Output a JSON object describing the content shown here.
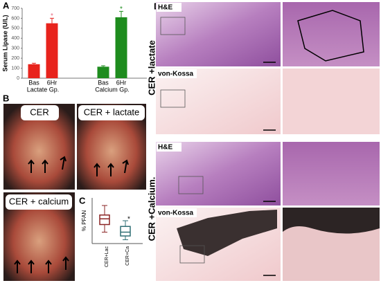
{
  "figure": {
    "panels": [
      "A",
      "B",
      "C",
      "D"
    ],
    "photos": [
      "CER",
      "CER + lactate",
      "CER + calcium"
    ],
    "stains": [
      "H&E",
      "von-Kossa",
      "H&E",
      "von-Kossa"
    ],
    "row_labels": [
      "CER +lactate",
      "CER +Calcium."
    ]
  },
  "chart_data": [
    {
      "type": "bar",
      "ylabel": "Serum Lipase (U/L)",
      "categories": [
        "Bas",
        "6Hr",
        "Bas",
        "6Hr"
      ],
      "groups": [
        "Lactate Gp.",
        "Calcium Gp."
      ],
      "values": [
        140,
        550,
        115,
        610
      ],
      "errors": [
        10,
        50,
        10,
        60
      ],
      "colors": [
        "#e8231c",
        "#e8231c",
        "#1e8c1e",
        "#1e8c1e"
      ],
      "annotations": [
        "*",
        "*"
      ],
      "ylim": [
        0,
        700
      ],
      "yticks": [
        0,
        100,
        200,
        300,
        400,
        500,
        600,
        700
      ]
    },
    {
      "type": "box",
      "ylabel": "% PFAN",
      "categories": [
        "CER+Lac",
        "CER+Ca"
      ],
      "min": [
        3,
        1
      ],
      "q1": [
        5,
        2
      ],
      "median": [
        6.5,
        3
      ],
      "q3": [
        7.5,
        4.5
      ],
      "max": [
        10,
        6
      ],
      "colors": [
        "#8a2323",
        "#2f6f74"
      ],
      "annotation": "*",
      "ylim": [
        0,
        12
      ]
    }
  ]
}
